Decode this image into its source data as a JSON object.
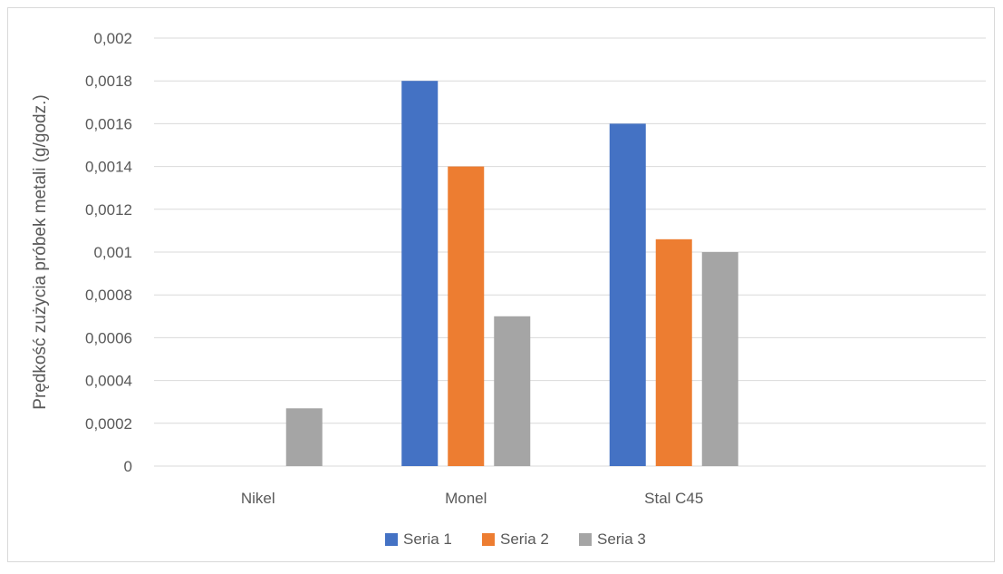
{
  "chart_data": {
    "type": "bar",
    "categories": [
      "Nikel",
      "Monel",
      "Stal C45",
      ""
    ],
    "series": [
      {
        "name": "Seria 1",
        "values": [
          null,
          0.0018,
          0.0016,
          null
        ],
        "color": "#4472c4"
      },
      {
        "name": "Seria 2",
        "values": [
          null,
          0.0014,
          0.00106,
          null
        ],
        "color": "#ed7d31"
      },
      {
        "name": "Seria 3",
        "values": [
          0.00027,
          0.0007,
          0.001,
          null
        ],
        "color": "#a5a5a5"
      }
    ],
    "title": "",
    "xlabel": "",
    "ylabel": "Prędkość zużycia próbek metali (g/godz.)",
    "ylim": [
      0,
      0.002
    ],
    "yticks": [
      {
        "value": 0,
        "label": "0"
      },
      {
        "value": 0.0002,
        "label": "0,0002"
      },
      {
        "value": 0.0004,
        "label": "0,0004"
      },
      {
        "value": 0.0006,
        "label": "0,0006"
      },
      {
        "value": 0.0008,
        "label": "0,0008"
      },
      {
        "value": 0.001,
        "label": "0,001"
      },
      {
        "value": 0.0012,
        "label": "0,0012"
      },
      {
        "value": 0.0014,
        "label": "0,0014"
      },
      {
        "value": 0.0016,
        "label": "0,0016"
      },
      {
        "value": 0.0018,
        "label": "0,0018"
      },
      {
        "value": 0.002,
        "label": "0,002"
      }
    ],
    "grid": true,
    "legend_position": "bottom"
  }
}
